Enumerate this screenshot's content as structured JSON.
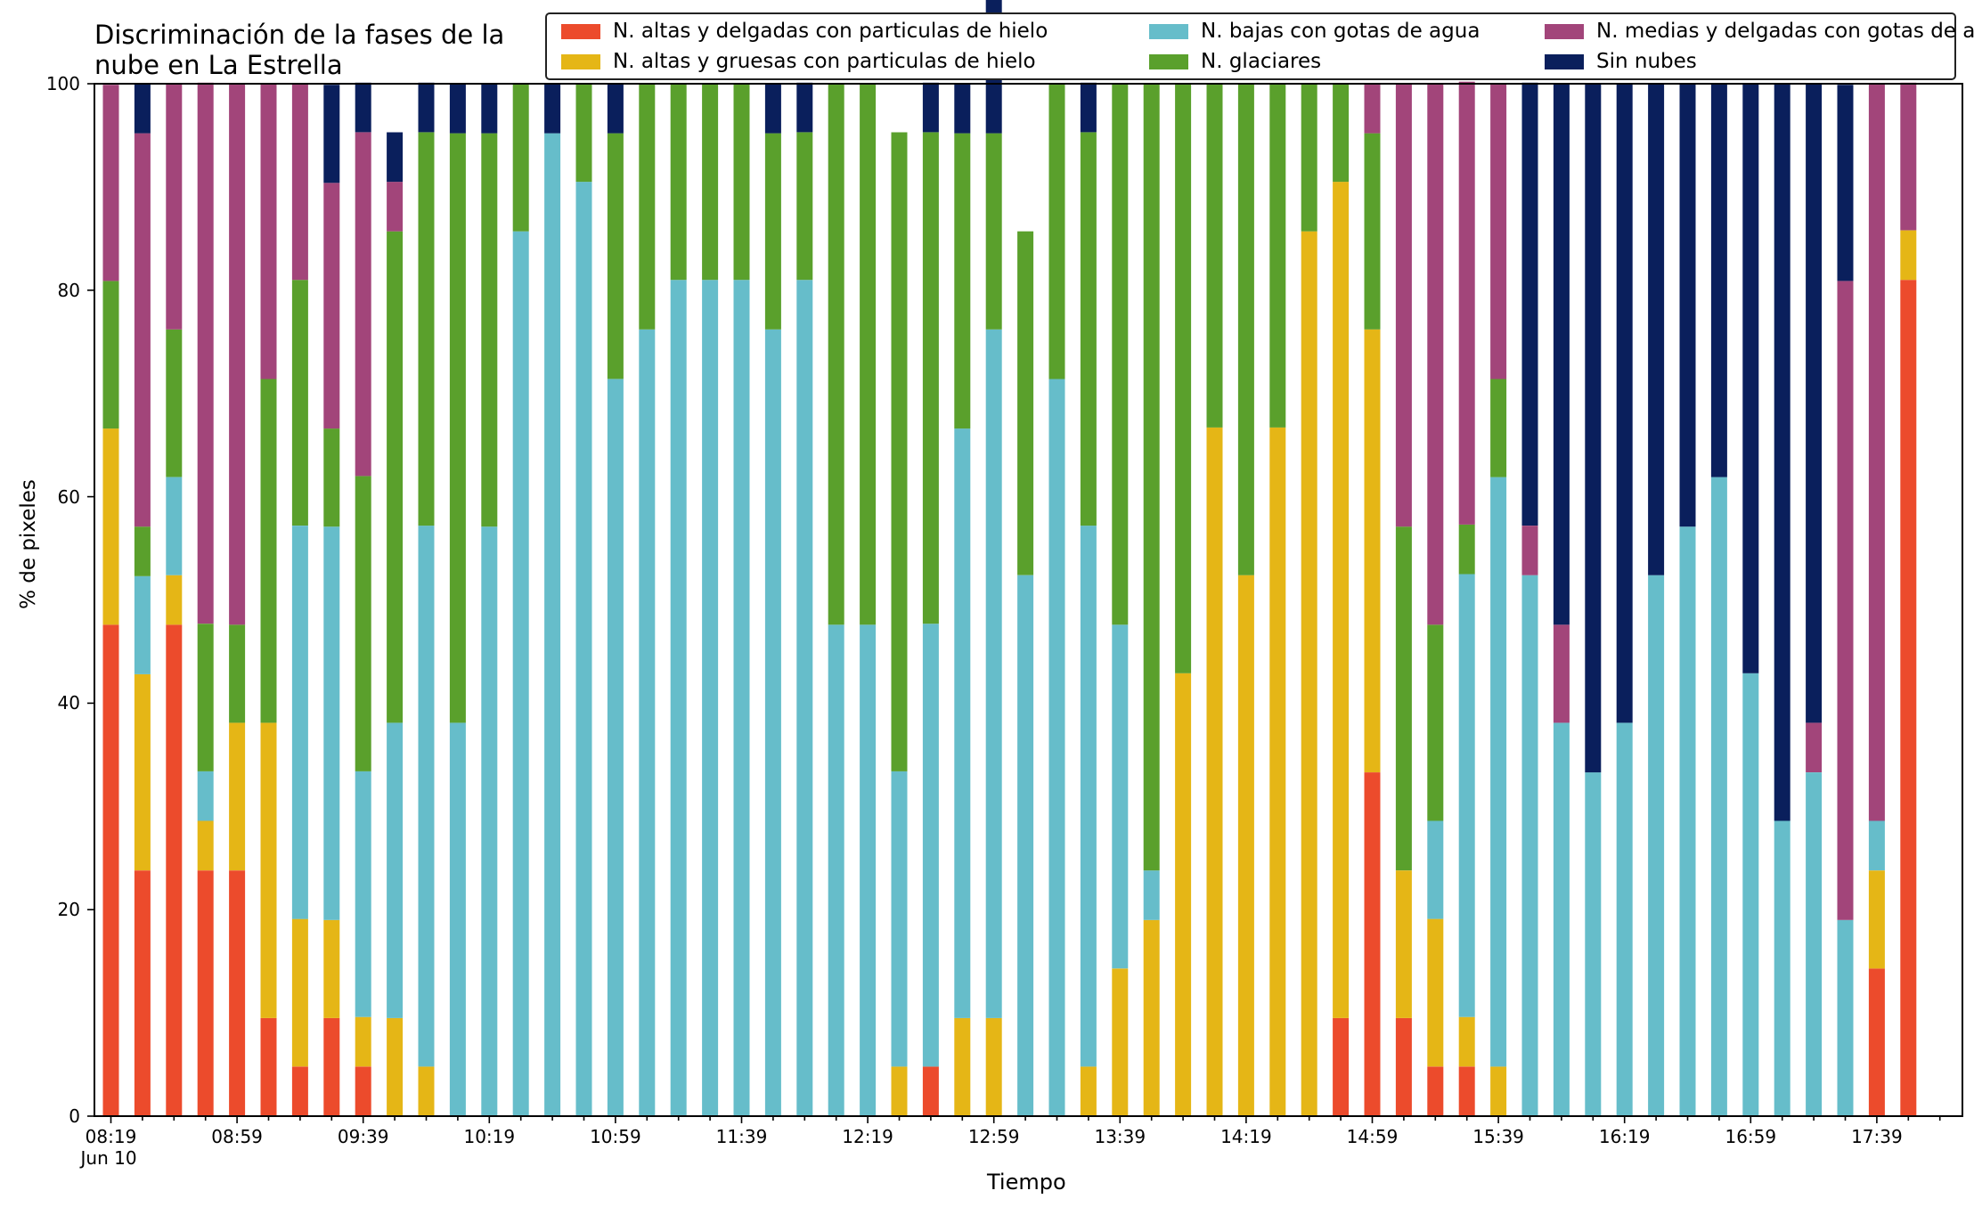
{
  "chart_data": {
    "type": "bar",
    "stacked": true,
    "title": "Discriminación de la fases de la\nnube en La Estrella",
    "xlabel": "Tiempo",
    "ylabel": "% de pixeles",
    "ylim": [
      0,
      100
    ],
    "y_ticks": [
      "0",
      "20",
      "40",
      "60",
      "80",
      "100"
    ],
    "x_tick_labels": [
      "08:19",
      "08:59",
      "09:39",
      "10:19",
      "10:59",
      "11:39",
      "12:19",
      "12:59",
      "13:39",
      "14:19",
      "14:59",
      "15:39",
      "16:19",
      "16:59",
      "17:39"
    ],
    "x_date_label": "Jun 10",
    "legend_position": "top-right",
    "categories": [
      "08:19",
      "08:29",
      "08:39",
      "08:49",
      "08:59",
      "09:09",
      "09:19",
      "09:29",
      "09:39",
      "09:49",
      "09:59",
      "10:09",
      "10:19",
      "10:29",
      "10:39",
      "10:49",
      "10:59",
      "11:09",
      "11:19",
      "11:29",
      "11:39",
      "11:49",
      "11:59",
      "12:09",
      "12:19",
      "12:29",
      "12:39",
      "12:49",
      "12:59",
      "13:09",
      "13:19",
      "13:29",
      "13:39",
      "13:49",
      "13:59",
      "14:09",
      "14:19",
      "14:29",
      "14:39",
      "14:49",
      "14:59",
      "15:09",
      "15:19",
      "15:29",
      "15:39",
      "15:49",
      "15:59",
      "16:09",
      "16:19",
      "16:29",
      "16:39",
      "16:49",
      "16:59",
      "17:09",
      "17:19",
      "17:29",
      "17:39",
      "17:49"
    ],
    "series": [
      {
        "name": "N. altas y delgadas con particulas de hielo",
        "color": "#ec4b2c",
        "values": [
          47.6,
          23.8,
          47.6,
          23.8,
          23.8,
          9.5,
          4.8,
          9.5,
          4.8,
          0,
          0,
          0,
          0,
          0,
          0,
          0,
          0,
          0,
          0,
          0,
          0,
          0,
          0,
          0,
          0,
          0,
          4.8,
          0,
          0,
          0,
          0,
          0,
          0,
          0,
          0,
          0,
          0,
          0,
          0,
          9.5,
          33.3,
          9.5,
          4.8,
          4.8,
          0,
          0,
          0,
          0,
          0,
          0,
          0,
          0,
          0,
          0,
          0,
          0,
          14.3,
          81.0
        ]
      },
      {
        "name": "N. altas y gruesas con particulas de hielo",
        "color": "#e5b616",
        "values": [
          19.0,
          19.0,
          4.8,
          4.8,
          14.3,
          28.6,
          14.3,
          9.5,
          4.8,
          9.5,
          4.8,
          0,
          0,
          0,
          0,
          0,
          0,
          0,
          0,
          0,
          0,
          0,
          0,
          0,
          0,
          4.8,
          0,
          9.5,
          9.5,
          0,
          0,
          4.8,
          14.3,
          19.0,
          42.9,
          66.7,
          52.4,
          66.7,
          85.7,
          81.0,
          42.9,
          14.3,
          14.3,
          4.8,
          4.8,
          0,
          0,
          0,
          0,
          0,
          0,
          0,
          0,
          0,
          0,
          0,
          9.5,
          4.8
        ]
      },
      {
        "name": "N. bajas con gotas de agua",
        "color": "#66bdca",
        "values": [
          0,
          9.5,
          9.5,
          4.8,
          0,
          0,
          38.1,
          38.1,
          23.8,
          28.6,
          52.4,
          38.1,
          57.1,
          85.7,
          95.2,
          90.5,
          71.4,
          76.2,
          81.0,
          81.0,
          81.0,
          76.2,
          81.0,
          47.6,
          47.6,
          28.6,
          42.9,
          57.1,
          66.7,
          52.4,
          71.4,
          52.4,
          33.3,
          4.8,
          0,
          0,
          0,
          0,
          0,
          0,
          0,
          0,
          9.5,
          42.9,
          57.1,
          52.4,
          38.1,
          33.3,
          38.1,
          52.4,
          57.1,
          61.9,
          42.9,
          28.6,
          33.3,
          19.0,
          4.8,
          0
        ]
      },
      {
        "name": "N. glaciares",
        "color": "#5aa02c",
        "values": [
          14.3,
          4.8,
          14.3,
          14.3,
          9.5,
          33.3,
          23.8,
          9.5,
          28.6,
          47.6,
          38.1,
          57.1,
          38.1,
          14.3,
          0,
          9.5,
          23.8,
          23.8,
          19.0,
          19.0,
          19.0,
          19.0,
          14.3,
          52.4,
          52.4,
          61.9,
          47.6,
          28.6,
          19.0,
          33.3,
          28.6,
          38.1,
          52.4,
          76.2,
          57.1,
          33.3,
          47.6,
          33.3,
          14.3,
          9.5,
          19.0,
          33.3,
          19.0,
          4.8,
          9.5,
          0,
          0,
          0,
          0,
          0,
          0,
          0,
          0,
          0,
          0,
          0,
          0,
          0
        ]
      },
      {
        "name": "N. medias y delgadas con gotas de agua",
        "color": "#a2457a",
        "values": [
          19.0,
          38.1,
          23.8,
          52.4,
          52.4,
          28.6,
          19.0,
          23.8,
          33.3,
          4.8,
          0,
          0,
          0,
          0,
          0,
          0,
          0,
          0,
          0,
          0,
          0,
          0,
          0,
          0,
          0,
          0,
          0,
          0,
          0,
          0,
          0,
          0,
          0,
          0,
          0,
          0,
          0,
          0,
          0,
          0,
          4.8,
          42.9,
          52.4,
          42.9,
          28.6,
          4.8,
          9.5,
          0,
          0,
          0,
          0,
          0,
          0,
          0,
          4.8,
          61.9,
          71.4,
          14.3
        ]
      },
      {
        "name": "Sin nubes",
        "color": "#0a1f5c",
        "values": [
          0,
          4.8,
          0,
          0,
          0,
          0,
          0,
          9.5,
          4.8,
          4.8,
          4.8,
          4.8,
          4.8,
          0,
          4.8,
          0,
          4.8,
          0,
          0,
          0,
          0,
          4.8,
          4.8,
          0,
          0,
          0,
          4.8,
          4.8,
          14.3,
          0,
          0,
          4.8,
          0,
          0,
          0,
          0,
          0,
          0,
          0,
          0,
          0,
          0,
          0,
          0,
          0,
          42.9,
          52.4,
          66.7,
          61.9,
          47.6,
          42.9,
          38.1,
          57.1,
          71.4,
          61.9,
          19.0,
          0,
          0
        ]
      }
    ]
  }
}
